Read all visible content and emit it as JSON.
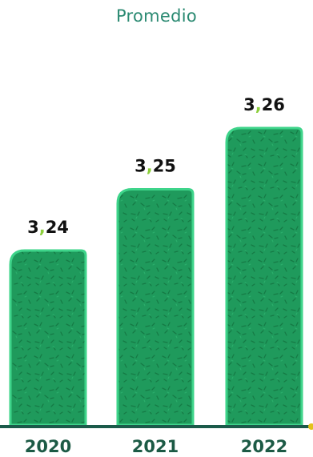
{
  "chart_data": {
    "type": "bar",
    "title": "Promedio",
    "categories": [
      "2020",
      "2021",
      "2022"
    ],
    "values": [
      3.24,
      3.25,
      3.26
    ],
    "value_labels": [
      "3,24",
      "3,25",
      "3,26"
    ],
    "xlabel": "",
    "ylabel": "",
    "grid": false,
    "legend": "none"
  },
  "colors": {
    "bar_fill": "#1f9a5c",
    "bar_edge": "#3ed48a",
    "bar_texture": "#157a45",
    "axis": "#1b5a4a",
    "axis_end": "#e3c21b",
    "decimal_comma": "#8ccf3c",
    "title": "#2b8a72",
    "category_label": "#1c5a45"
  }
}
